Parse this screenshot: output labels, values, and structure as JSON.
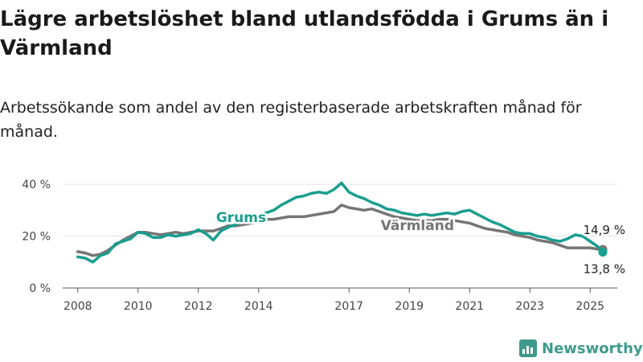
{
  "title": "Lägre arbetslöshet bland utlandsfödda i Grums än i Värmland",
  "subtitle": "Arbetssökande som andel av den registerbaserade arbetskraften månad för månad.",
  "brand": {
    "name": "Newsworthy",
    "icon": "newsworthy-logo-icon"
  },
  "colors": {
    "grums": "#1a9e8e",
    "varmland": "#757575",
    "grid": "#e3e3e3",
    "axis": "#555555"
  },
  "chart_data": {
    "type": "line",
    "title": "Lägre arbetslöshet bland utlandsfödda i Grums än i Värmland",
    "subtitle": "Arbetssökande som andel av den registerbaserade arbetskraften månad för månad.",
    "xlabel": "",
    "ylabel": "",
    "xlim": [
      2007.5,
      2025.9
    ],
    "ylim": [
      0,
      45
    ],
    "yticks": [
      0,
      20,
      40
    ],
    "ytick_labels": [
      "0 %",
      "20 %",
      "40 %"
    ],
    "xticks": [
      2008,
      2010,
      2012,
      2014,
      2017,
      2019,
      2021,
      2023,
      2025
    ],
    "xtick_labels": [
      "2008",
      "2010",
      "2012",
      "2014",
      "2017",
      "2019",
      "2021",
      "2023",
      "2025"
    ],
    "grid": "horizontal",
    "legend": "inline labels",
    "series": [
      {
        "name": "Grums",
        "color": "#1a9e8e",
        "end_label": "13,8 %",
        "points": [
          [
            2008.0,
            12.0
          ],
          [
            2008.25,
            11.5
          ],
          [
            2008.5,
            10.0
          ],
          [
            2008.75,
            12.5
          ],
          [
            2009.0,
            13.5
          ],
          [
            2009.25,
            17.0
          ],
          [
            2009.5,
            18.0
          ],
          [
            2009.75,
            19.0
          ],
          [
            2010.0,
            21.5
          ],
          [
            2010.25,
            21.0
          ],
          [
            2010.5,
            19.5
          ],
          [
            2010.75,
            19.5
          ],
          [
            2011.0,
            20.5
          ],
          [
            2011.25,
            20.0
          ],
          [
            2011.5,
            20.5
          ],
          [
            2011.75,
            21.0
          ],
          [
            2012.0,
            22.5
          ],
          [
            2012.25,
            21.0
          ],
          [
            2012.5,
            18.5
          ],
          [
            2012.75,
            22.0
          ],
          [
            2013.0,
            23.5
          ],
          [
            2013.25,
            24.5
          ],
          [
            2013.5,
            26.0
          ],
          [
            2013.75,
            26.5
          ],
          [
            2014.0,
            28.0
          ],
          [
            2014.25,
            29.0
          ],
          [
            2014.5,
            30.0
          ],
          [
            2014.75,
            32.0
          ],
          [
            2015.0,
            33.5
          ],
          [
            2015.25,
            35.0
          ],
          [
            2015.5,
            35.5
          ],
          [
            2015.75,
            36.5
          ],
          [
            2016.0,
            37.0
          ],
          [
            2016.25,
            36.5
          ],
          [
            2016.5,
            38.0
          ],
          [
            2016.75,
            40.5
          ],
          [
            2017.0,
            37.0
          ],
          [
            2017.25,
            35.5
          ],
          [
            2017.5,
            34.5
          ],
          [
            2017.75,
            33.0
          ],
          [
            2018.0,
            32.0
          ],
          [
            2018.25,
            30.5
          ],
          [
            2018.5,
            30.0
          ],
          [
            2018.75,
            29.0
          ],
          [
            2019.0,
            28.5
          ],
          [
            2019.25,
            28.0
          ],
          [
            2019.5,
            28.5
          ],
          [
            2019.75,
            28.0
          ],
          [
            2020.0,
            28.5
          ],
          [
            2020.25,
            29.0
          ],
          [
            2020.5,
            28.5
          ],
          [
            2020.75,
            29.5
          ],
          [
            2021.0,
            30.0
          ],
          [
            2021.25,
            28.5
          ],
          [
            2021.5,
            27.0
          ],
          [
            2021.75,
            25.5
          ],
          [
            2022.0,
            24.5
          ],
          [
            2022.25,
            23.0
          ],
          [
            2022.5,
            21.5
          ],
          [
            2022.75,
            21.0
          ],
          [
            2023.0,
            21.0
          ],
          [
            2023.25,
            20.0
          ],
          [
            2023.5,
            19.5
          ],
          [
            2023.75,
            18.5
          ],
          [
            2024.0,
            18.0
          ],
          [
            2024.25,
            19.0
          ],
          [
            2024.5,
            20.5
          ],
          [
            2024.75,
            20.0
          ],
          [
            2025.0,
            18.0
          ],
          [
            2025.25,
            16.0
          ],
          [
            2025.42,
            13.8
          ]
        ]
      },
      {
        "name": "Värmland",
        "color": "#757575",
        "end_label": "14,9 %",
        "points": [
          [
            2008.0,
            14.0
          ],
          [
            2008.25,
            13.5
          ],
          [
            2008.5,
            12.5
          ],
          [
            2008.75,
            13.0
          ],
          [
            2009.0,
            14.5
          ],
          [
            2009.25,
            16.5
          ],
          [
            2009.5,
            18.5
          ],
          [
            2009.75,
            20.0
          ],
          [
            2010.0,
            21.5
          ],
          [
            2010.25,
            21.5
          ],
          [
            2010.5,
            21.0
          ],
          [
            2010.75,
            20.5
          ],
          [
            2011.0,
            21.0
          ],
          [
            2011.25,
            21.5
          ],
          [
            2011.5,
            21.0
          ],
          [
            2011.75,
            21.5
          ],
          [
            2012.0,
            22.0
          ],
          [
            2012.25,
            22.0
          ],
          [
            2012.5,
            22.0
          ],
          [
            2012.75,
            23.0
          ],
          [
            2013.0,
            24.0
          ],
          [
            2013.25,
            24.0
          ],
          [
            2013.5,
            24.5
          ],
          [
            2013.75,
            25.0
          ],
          [
            2014.0,
            25.5
          ],
          [
            2014.25,
            26.5
          ],
          [
            2014.5,
            26.5
          ],
          [
            2014.75,
            27.0
          ],
          [
            2015.0,
            27.5
          ],
          [
            2015.25,
            27.5
          ],
          [
            2015.5,
            27.5
          ],
          [
            2015.75,
            28.0
          ],
          [
            2016.0,
            28.5
          ],
          [
            2016.25,
            29.0
          ],
          [
            2016.5,
            29.5
          ],
          [
            2016.75,
            32.0
          ],
          [
            2017.0,
            31.0
          ],
          [
            2017.25,
            30.5
          ],
          [
            2017.5,
            30.0
          ],
          [
            2017.75,
            30.5
          ],
          [
            2018.0,
            29.5
          ],
          [
            2018.25,
            28.5
          ],
          [
            2018.5,
            27.5
          ],
          [
            2018.75,
            27.0
          ],
          [
            2019.0,
            26.5
          ],
          [
            2019.25,
            26.0
          ],
          [
            2019.5,
            26.0
          ],
          [
            2019.75,
            26.0
          ],
          [
            2020.0,
            26.5
          ],
          [
            2020.25,
            26.5
          ],
          [
            2020.5,
            26.0
          ],
          [
            2020.75,
            25.5
          ],
          [
            2021.0,
            25.0
          ],
          [
            2021.25,
            24.0
          ],
          [
            2021.5,
            23.0
          ],
          [
            2021.75,
            22.5
          ],
          [
            2022.0,
            22.0
          ],
          [
            2022.25,
            21.5
          ],
          [
            2022.5,
            20.5
          ],
          [
            2022.75,
            20.0
          ],
          [
            2023.0,
            19.5
          ],
          [
            2023.25,
            18.5
          ],
          [
            2023.5,
            18.0
          ],
          [
            2023.75,
            17.5
          ],
          [
            2024.0,
            16.5
          ],
          [
            2024.25,
            15.5
          ],
          [
            2024.5,
            15.5
          ],
          [
            2024.75,
            15.5
          ],
          [
            2025.0,
            15.5
          ],
          [
            2025.25,
            15.0
          ],
          [
            2025.42,
            14.9
          ]
        ]
      }
    ]
  }
}
